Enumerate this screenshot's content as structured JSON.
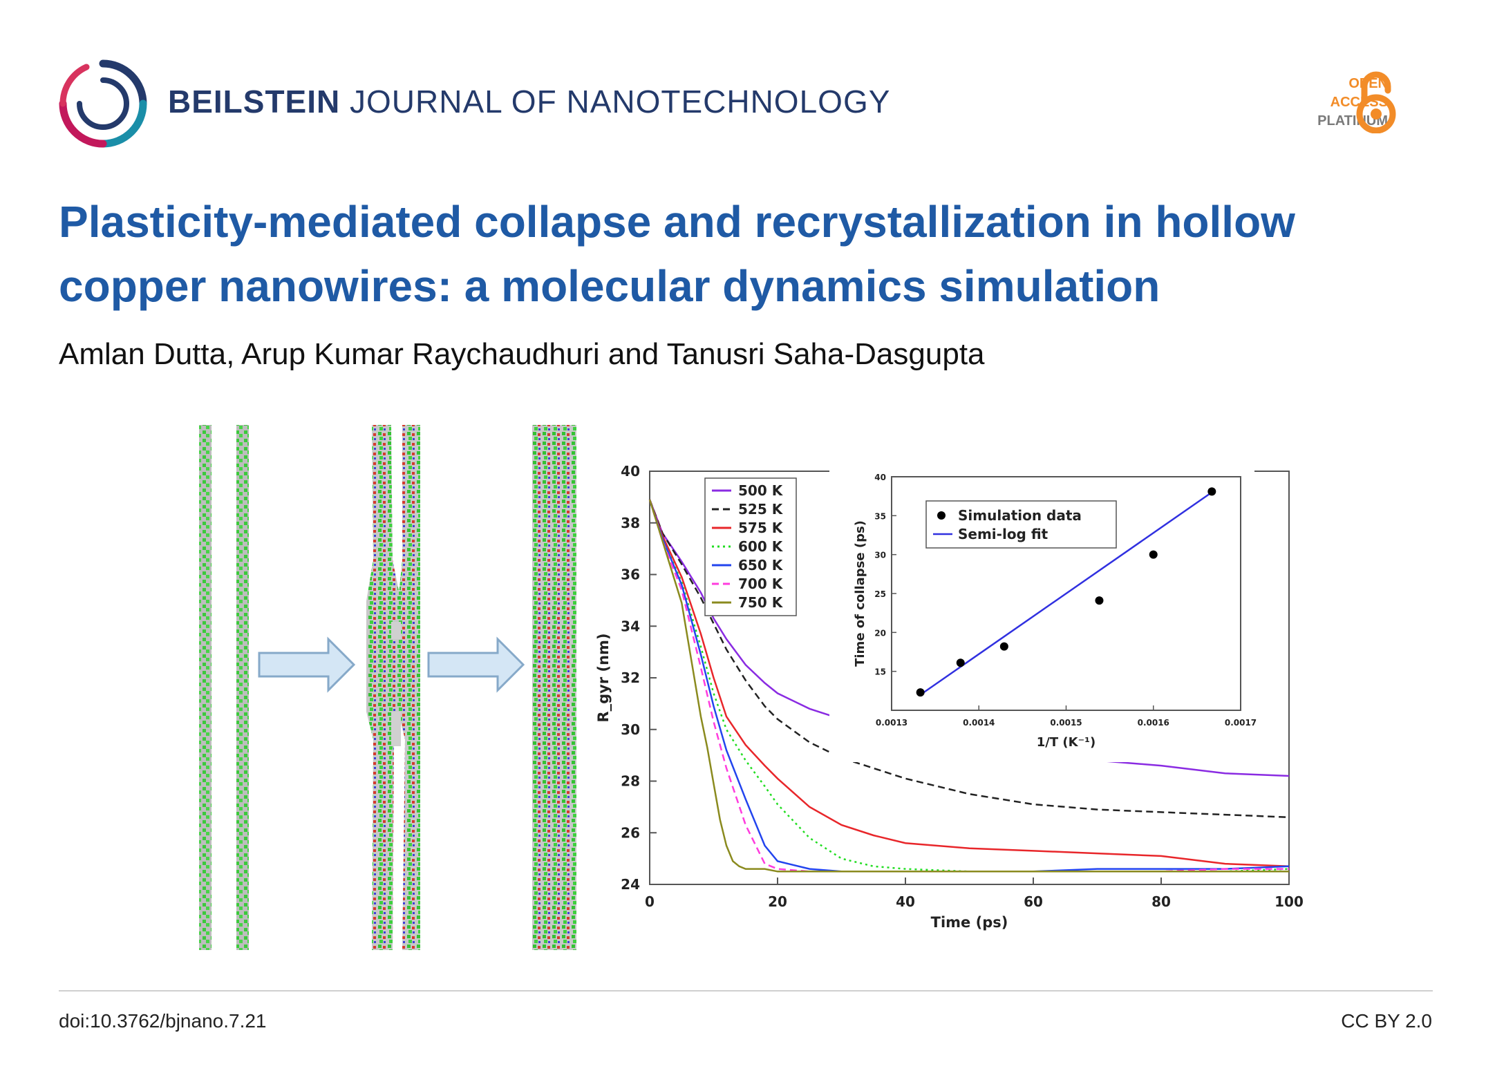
{
  "header": {
    "journal_bold": "BEILSTEIN",
    "journal_rest": "JOURNAL OF NANOTECHNOLOGY",
    "oa_line1": "OPEN",
    "oa_line2": "ACCESS",
    "oa_line3": "PLATINUM",
    "logo_icon": "beilstein-ring-logo",
    "oa_icon": "open-access-lock-icon",
    "colors": {
      "journal": "#243a6b",
      "title": "#1f5aa5",
      "oa_orange": "#f28c28",
      "oa_grey": "#7a7a7a"
    }
  },
  "article": {
    "title": "Plasticity-mediated collapse and recrystallization in hollow copper nanowires: a molecular dynamics simulation",
    "authors": "Amlan Dutta, Arup Kumar Raychaudhuri and Tanusri Saha-Dasgupta"
  },
  "footer": {
    "doi": "doi:10.3762/bjnano.7.21",
    "license": "CC BY 2.0"
  },
  "chart_data": [
    {
      "type": "line",
      "xlabel": "Time (ps)",
      "ylabel": "R_gyr (nm)",
      "xlim": [
        0,
        100
      ],
      "ylim": [
        24,
        40
      ],
      "xticks": [
        "0",
        "20",
        "40",
        "60",
        "80",
        "100"
      ],
      "yticks": [
        "24",
        "26",
        "28",
        "30",
        "32",
        "34",
        "36",
        "38",
        "40"
      ],
      "legend_position": "top-left",
      "series": [
        {
          "name": "500 K",
          "color": "#8a2be2",
          "dash": "solid",
          "x": [
            0,
            2,
            5,
            8,
            10,
            12,
            15,
            18,
            20,
            25,
            30,
            35,
            40,
            50,
            60,
            70,
            80,
            90,
            100
          ],
          "y": [
            38.9,
            37.6,
            36.5,
            35.3,
            34.3,
            33.5,
            32.5,
            31.8,
            31.4,
            30.8,
            30.4,
            30.1,
            29.8,
            29.4,
            29.1,
            28.8,
            28.6,
            28.3,
            28.2
          ]
        },
        {
          "name": "525 K",
          "color": "#222222",
          "dash": "dash",
          "x": [
            0,
            2,
            5,
            8,
            10,
            12,
            15,
            18,
            20,
            25,
            30,
            35,
            40,
            50,
            60,
            70,
            80,
            90,
            100
          ],
          "y": [
            38.9,
            37.6,
            36.4,
            35.1,
            34.1,
            33.1,
            31.9,
            30.9,
            30.4,
            29.5,
            28.9,
            28.5,
            28.1,
            27.5,
            27.1,
            26.9,
            26.8,
            26.7,
            26.6
          ]
        },
        {
          "name": "575 K",
          "color": "#e8262a",
          "dash": "solid",
          "x": [
            0,
            2,
            5,
            8,
            10,
            12,
            15,
            18,
            20,
            25,
            30,
            35,
            40,
            50,
            60,
            70,
            80,
            90,
            100
          ],
          "y": [
            38.9,
            37.5,
            35.9,
            33.7,
            32.0,
            30.5,
            29.4,
            28.6,
            28.1,
            27.0,
            26.3,
            25.9,
            25.6,
            25.4,
            25.3,
            25.2,
            25.1,
            24.8,
            24.7
          ]
        },
        {
          "name": "600 K",
          "color": "#22dd22",
          "dash": "dot",
          "x": [
            0,
            2,
            5,
            8,
            10,
            12,
            15,
            18,
            20,
            25,
            30,
            35,
            40,
            50,
            60,
            70,
            80,
            90,
            100
          ],
          "y": [
            38.9,
            37.4,
            35.7,
            33.2,
            31.4,
            30.0,
            28.8,
            27.8,
            27.1,
            25.8,
            25.0,
            24.7,
            24.6,
            24.5,
            24.5,
            24.5,
            24.5,
            24.5,
            24.6
          ]
        },
        {
          "name": "650 K",
          "color": "#2244ee",
          "dash": "solid",
          "x": [
            0,
            2,
            5,
            8,
            10,
            12,
            15,
            18,
            20,
            25,
            30,
            35,
            40,
            50,
            60,
            70,
            80,
            90,
            100
          ],
          "y": [
            38.9,
            37.4,
            35.6,
            32.9,
            30.9,
            29.2,
            27.3,
            25.5,
            24.9,
            24.6,
            24.5,
            24.5,
            24.5,
            24.5,
            24.5,
            24.6,
            24.6,
            24.6,
            24.7
          ]
        },
        {
          "name": "700 K",
          "color": "#ff3cde",
          "dash": "dash",
          "x": [
            0,
            2,
            5,
            8,
            10,
            12,
            15,
            18,
            20,
            25,
            30,
            35,
            40,
            50,
            60,
            70,
            80,
            90,
            100
          ],
          "y": [
            38.9,
            37.3,
            35.4,
            32.4,
            30.3,
            28.5,
            26.3,
            24.8,
            24.6,
            24.5,
            24.5,
            24.5,
            24.5,
            24.5,
            24.5,
            24.5,
            24.5,
            24.6,
            24.6
          ]
        },
        {
          "name": "750 K",
          "color": "#8a8a1e",
          "dash": "solid",
          "x": [
            0,
            2,
            5,
            8,
            9,
            10,
            11,
            12,
            13,
            14,
            15,
            18,
            20,
            25,
            30,
            40,
            50,
            60,
            70,
            80,
            90,
            100
          ],
          "y": [
            38.9,
            37.3,
            34.9,
            30.5,
            29.3,
            27.9,
            26.5,
            25.5,
            24.9,
            24.7,
            24.6,
            24.6,
            24.5,
            24.5,
            24.5,
            24.5,
            24.5,
            24.5,
            24.5,
            24.5,
            24.5,
            24.5
          ]
        }
      ]
    },
    {
      "type": "scatter",
      "xlabel": "1/T (K⁻¹)",
      "ylabel": "Time of collapse (ps)",
      "xlim": [
        0.0013,
        0.0017
      ],
      "ylim": [
        10,
        40
      ],
      "xticks": [
        "0.0013",
        "0.0014",
        "0.0015",
        "0.0016",
        "0.0017"
      ],
      "yticks": [
        "15",
        "20",
        "25",
        "30",
        "35",
        "40"
      ],
      "legend_position": "top-left",
      "series": [
        {
          "name": "Simulation data",
          "color": "#000000",
          "x": [
            0.001333,
            0.001429,
            0.001538,
            0.001667,
            0.0016,
            0.001379
          ],
          "y": [
            12.3,
            18.2,
            24.1,
            38.1,
            30.0,
            16.1
          ]
        },
        {
          "name": "Semi-log fit",
          "color": "#3030e0",
          "x": [
            0.001333,
            0.001667
          ],
          "y": [
            12.0,
            38.0
          ]
        }
      ]
    }
  ]
}
